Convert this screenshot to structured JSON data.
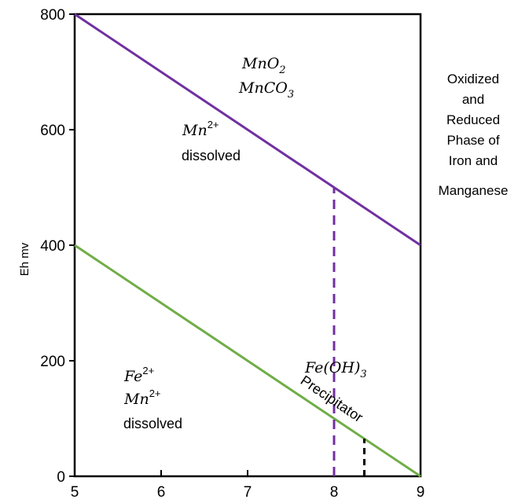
{
  "chart_data": {
    "type": "line",
    "title": "",
    "xlabel": "",
    "ylabel": "Eh mv",
    "xlim": [
      5,
      9
    ],
    "ylim": [
      0,
      800
    ],
    "x_ticks": [
      "5",
      "6",
      "7",
      "8",
      "9"
    ],
    "y_ticks": [
      "0",
      "200",
      "400",
      "600",
      "800"
    ],
    "grid": false,
    "series": [
      {
        "key": "mn",
        "color": "#7030a0",
        "x": [
          5,
          9
        ],
        "y": [
          800,
          400
        ]
      },
      {
        "key": "fe",
        "color": "#70ad47",
        "x": [
          5,
          9
        ],
        "y": [
          400,
          0
        ]
      }
    ],
    "reference_lines": [
      {
        "key": "mn-drop",
        "color": "#7030a0",
        "style": "dashed",
        "x": 8,
        "y_from": 0,
        "y_to": 500
      },
      {
        "key": "fe-drop",
        "color": "#000000",
        "style": "dashed",
        "x": 8.35,
        "y_from": 0,
        "y_to": 65
      }
    ],
    "annotations": {
      "mno2": {
        "base": "MnO",
        "sub": "2"
      },
      "mnco3": {
        "base": "MnCO",
        "sub": "3"
      },
      "mn_upper": {
        "base": "Mn",
        "sup": "2+",
        "label": "dissolved"
      },
      "fe_lower": {
        "base": "Fe",
        "sup": "2+"
      },
      "mn_lower": {
        "base": "Mn",
        "sup": "2+",
        "label": "dissolved"
      },
      "feoh3": {
        "base": "Fe(OH)",
        "sub": "3"
      },
      "precipitator": "Precipitator"
    },
    "side_text": [
      "Oxidized",
      "and",
      "Reduced",
      "Phase of",
      "Iron and",
      "Manganese"
    ]
  }
}
